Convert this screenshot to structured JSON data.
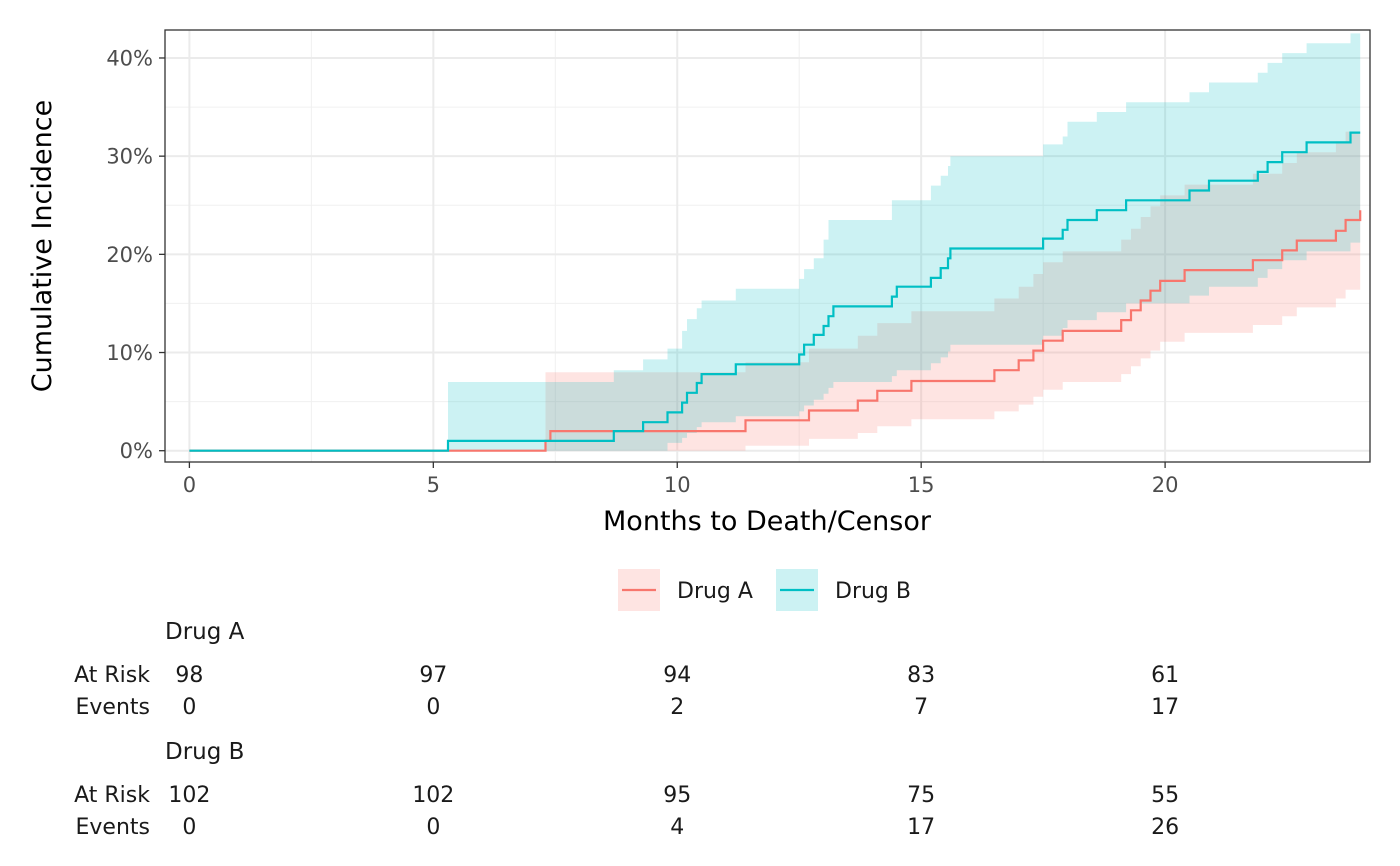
{
  "chart_data": {
    "type": "line",
    "subtype": "step cumulative incidence with confidence bands",
    "title": "",
    "xlabel": "Months to Death/Censor",
    "ylabel": "Cumulative Incidence",
    "xlim": [
      -0.5,
      24.2
    ],
    "ylim": [
      -0.0115,
      0.4285
    ],
    "x_ticks": [
      0,
      5,
      10,
      15,
      20
    ],
    "x_tick_labels": [
      "0",
      "5",
      "10",
      "15",
      "20"
    ],
    "y_ticks": [
      0,
      0.1,
      0.2,
      0.3,
      0.4
    ],
    "y_tick_labels": [
      "0%",
      "10%",
      "20%",
      "30%",
      "40%"
    ],
    "grid": true,
    "legend_position": "bottom",
    "legend": [
      "Drug A",
      "Drug B"
    ],
    "series": [
      {
        "name": "Drug A",
        "color": "#F8766D",
        "x": [
          0,
          7.3,
          7.4,
          11.4,
          12.7,
          13.7,
          14.1,
          14.8,
          16.5,
          17.0,
          17.3,
          17.5,
          17.9,
          19.1,
          19.3,
          19.5,
          19.7,
          19.9,
          20.4,
          21.8,
          22.4,
          22.7,
          23.5,
          23.7,
          24.0
        ],
        "y": [
          0,
          0.01,
          0.02,
          0.031,
          0.041,
          0.051,
          0.061,
          0.071,
          0.082,
          0.092,
          0.102,
          0.112,
          0.122,
          0.133,
          0.143,
          0.153,
          0.163,
          0.173,
          0.184,
          0.194,
          0.204,
          0.214,
          0.224,
          0.235,
          0.245
        ],
        "lower": [
          0,
          0,
          0,
          0.005,
          0.012,
          0.018,
          0.025,
          0.032,
          0.04,
          0.047,
          0.055,
          0.062,
          0.07,
          0.078,
          0.086,
          0.094,
          0.102,
          0.111,
          0.12,
          0.128,
          0.137,
          0.146,
          0.155,
          0.164,
          0.173
        ],
        "upper": [
          0,
          0.08,
          0.08,
          0.09,
          0.104,
          0.117,
          0.13,
          0.142,
          0.155,
          0.167,
          0.18,
          0.192,
          0.203,
          0.215,
          0.226,
          0.238,
          0.249,
          0.26,
          0.271,
          0.282,
          0.293,
          0.304,
          0.315,
          0.325,
          0.336
        ]
      },
      {
        "name": "Drug B",
        "color": "#00BFC4",
        "x": [
          0,
          5.3,
          8.7,
          9.3,
          9.8,
          10.1,
          10.2,
          10.4,
          10.5,
          11.2,
          12.5,
          12.6,
          12.8,
          13.0,
          13.1,
          13.2,
          14.4,
          14.5,
          15.2,
          15.4,
          15.55,
          15.6,
          17.5,
          17.9,
          18.0,
          18.6,
          19.2,
          20.5,
          20.9,
          21.9,
          22.1,
          22.4,
          22.9,
          23.8,
          24.0
        ],
        "y": [
          0,
          0.01,
          0.02,
          0.029,
          0.039,
          0.049,
          0.059,
          0.069,
          0.078,
          0.088,
          0.098,
          0.108,
          0.118,
          0.127,
          0.137,
          0.147,
          0.157,
          0.167,
          0.176,
          0.186,
          0.196,
          0.206,
          0.216,
          0.225,
          0.235,
          0.245,
          0.255,
          0.265,
          0.275,
          0.284,
          0.294,
          0.304,
          0.314,
          0.324,
          0.324
        ],
        "lower": [
          0,
          0,
          0,
          0,
          0.008,
          0.013,
          0.018,
          0.024,
          0.029,
          0.035,
          0.04,
          0.046,
          0.052,
          0.058,
          0.064,
          0.07,
          0.076,
          0.082,
          0.089,
          0.095,
          0.101,
          0.108,
          0.117,
          0.125,
          0.133,
          0.141,
          0.15,
          0.158,
          0.167,
          0.176,
          0.185,
          0.194,
          0.203,
          0.212,
          0.212
        ],
        "upper": [
          0,
          0.07,
          0.082,
          0.093,
          0.104,
          0.122,
          0.134,
          0.145,
          0.153,
          0.165,
          0.175,
          0.185,
          0.196,
          0.215,
          0.235,
          0.235,
          0.255,
          0.255,
          0.27,
          0.28,
          0.29,
          0.3,
          0.312,
          0.32,
          0.335,
          0.345,
          0.355,
          0.365,
          0.375,
          0.385,
          0.395,
          0.405,
          0.415,
          0.425,
          0.425
        ]
      }
    ],
    "risk_table": {
      "time_points": [
        0,
        5,
        10,
        15,
        20
      ],
      "row_labels": [
        "At Risk",
        "Events"
      ],
      "groups": [
        {
          "name": "Drug A",
          "at_risk": [
            "98",
            "97",
            "94",
            "83",
            "61"
          ],
          "events": [
            "0",
            "0",
            "2",
            "7",
            "17"
          ]
        },
        {
          "name": "Drug B",
          "at_risk": [
            "102",
            "102",
            "95",
            "75",
            "55"
          ],
          "events": [
            "0",
            "0",
            "4",
            "17",
            "26"
          ]
        }
      ]
    }
  }
}
